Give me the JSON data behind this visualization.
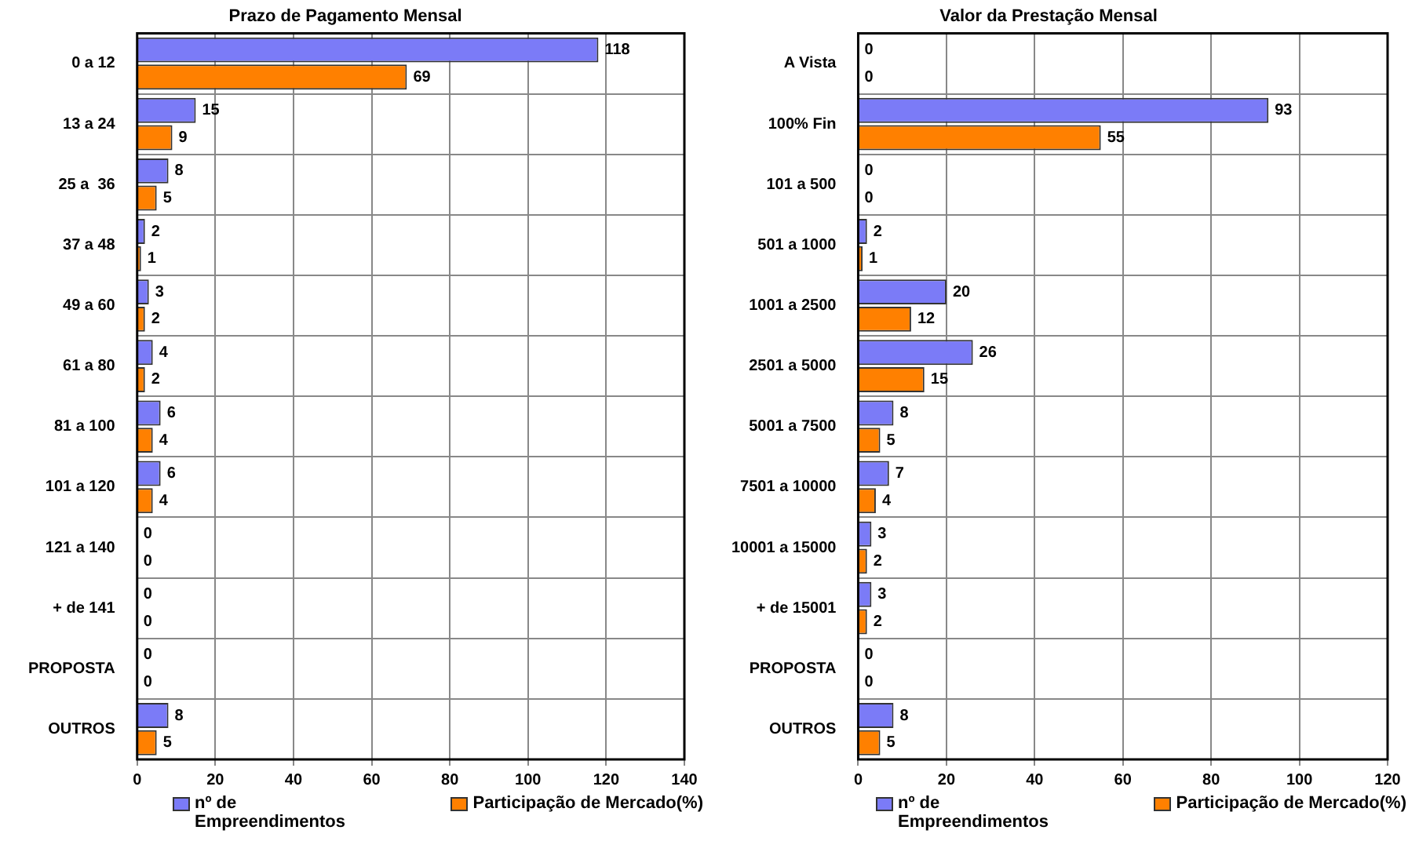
{
  "chart_data": [
    {
      "type": "bar",
      "orientation": "horizontal",
      "title": "Prazo de Pagamento Mensal",
      "categories": [
        "0 a 12",
        "13 a 24",
        "25 a  36",
        "37 a 48",
        "49 a 60",
        "61 a 80",
        "81 a 100",
        "101 a 120",
        "121 a 140",
        "+ de 141",
        "PROPOSTA",
        "OUTROS"
      ],
      "series": [
        {
          "name": "nº de Empreendimentos",
          "color": "#7b7bf7",
          "values": [
            118,
            15,
            8,
            2,
            3,
            4,
            6,
            6,
            0,
            0,
            0,
            8
          ]
        },
        {
          "name": "Participação de Mercado(%)",
          "color": "#ff8000",
          "values": [
            69,
            9,
            5,
            1,
            2,
            2,
            4,
            4,
            0,
            0,
            0,
            5
          ]
        }
      ],
      "xlim": [
        0,
        140
      ],
      "xticks": [
        0,
        20,
        40,
        60,
        80,
        100,
        120,
        140
      ],
      "grid": true,
      "legend": "bottom",
      "data_labels": true
    },
    {
      "type": "bar",
      "orientation": "horizontal",
      "title": "Valor da Prestação Mensal",
      "categories": [
        "A Vista",
        "100% Fin",
        "101 a 500",
        "501 a 1000",
        "1001 a 2500",
        "2501 a 5000",
        "5001 a 7500",
        "7501 a 10000",
        "10001 a 15000",
        "+ de 15001",
        "PROPOSTA",
        "OUTROS"
      ],
      "series": [
        {
          "name": "nº de Empreendimentos",
          "color": "#7b7bf7",
          "values": [
            0,
            93,
            0,
            2,
            20,
            26,
            8,
            7,
            3,
            3,
            0,
            8
          ]
        },
        {
          "name": "Participação de Mercado(%)",
          "color": "#ff8000",
          "values": [
            0,
            55,
            0,
            1,
            12,
            15,
            5,
            4,
            2,
            2,
            0,
            5
          ]
        }
      ],
      "xlim": [
        0,
        120
      ],
      "xticks": [
        0,
        20,
        40,
        60,
        80,
        100,
        120
      ],
      "grid": true,
      "legend": "bottom",
      "data_labels": true
    }
  ]
}
